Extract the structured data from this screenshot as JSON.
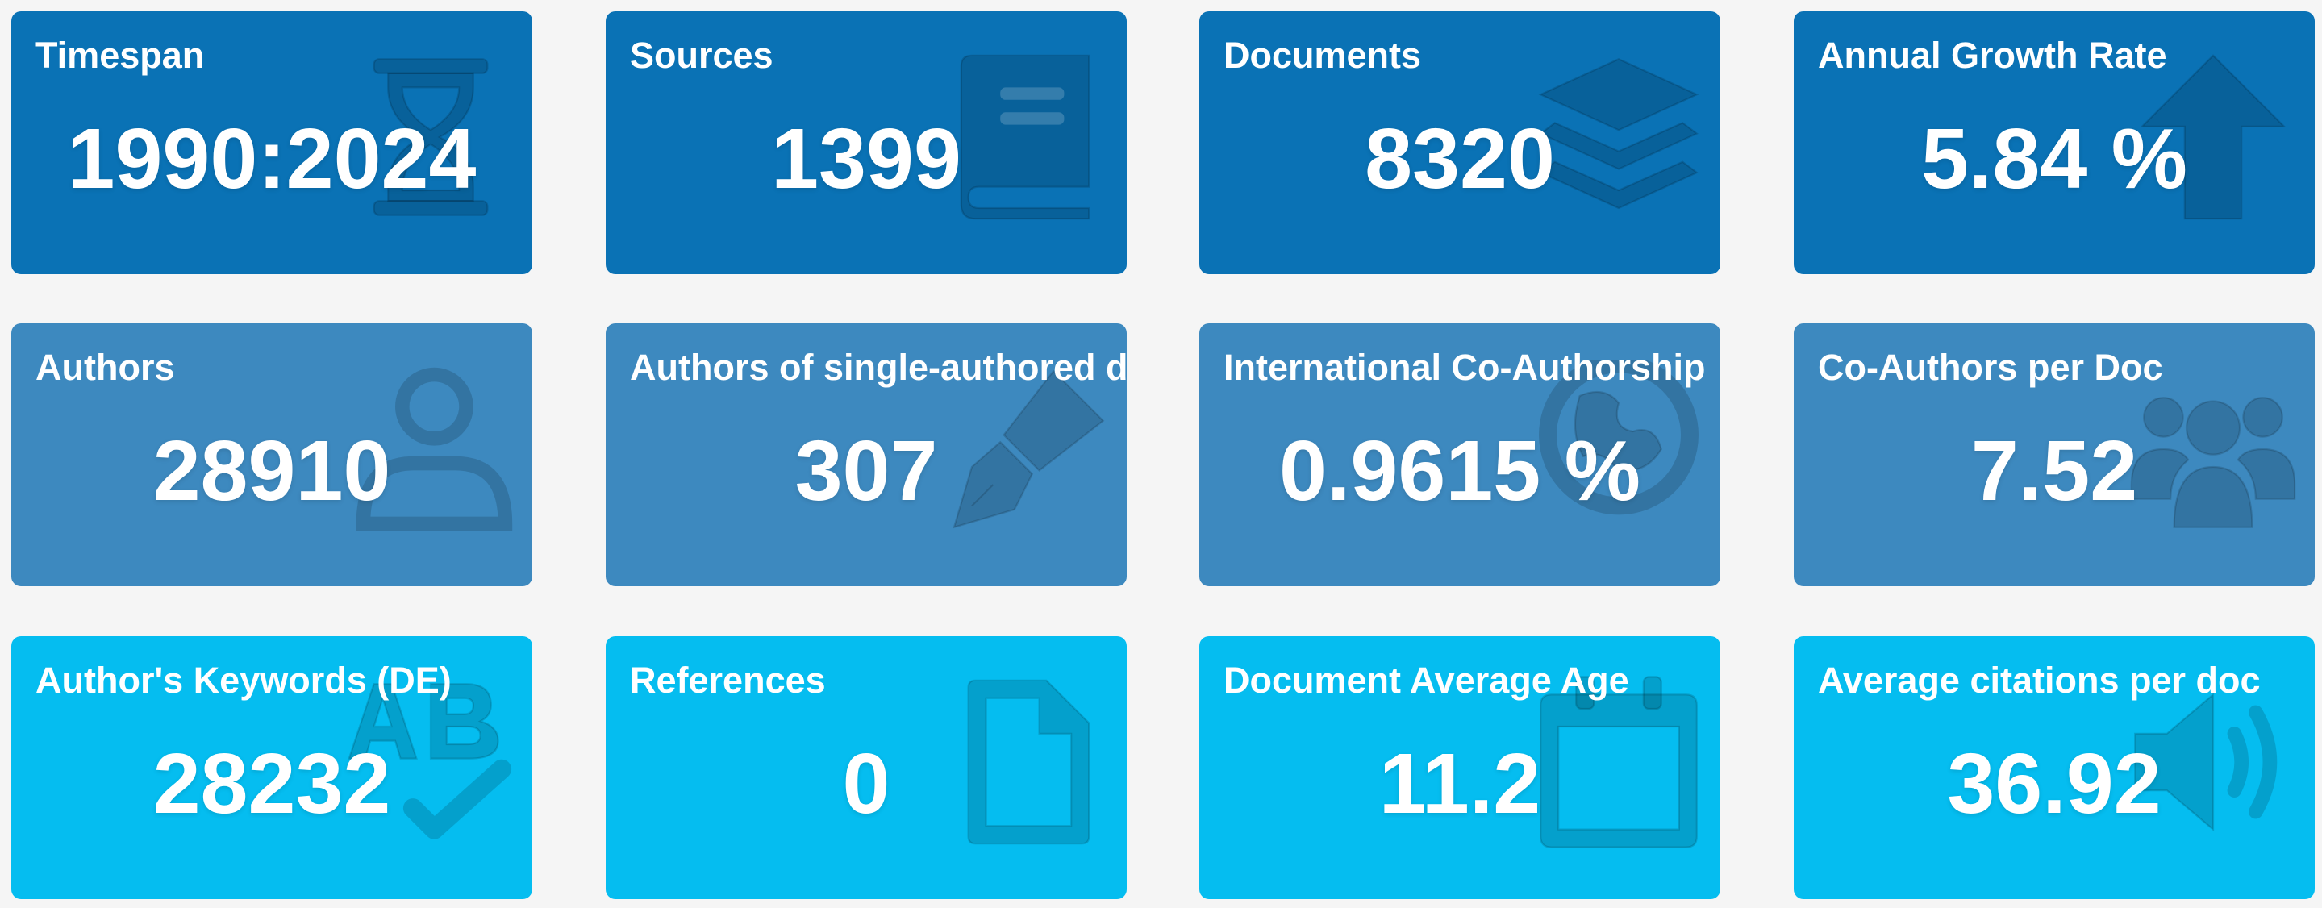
{
  "cards": [
    {
      "label": "Timespan",
      "value": "1990:2024",
      "icon": "hourglass-icon"
    },
    {
      "label": "Sources",
      "value": "1399",
      "icon": "book-icon"
    },
    {
      "label": "Documents",
      "value": "8320",
      "icon": "layers-icon"
    },
    {
      "label": "Annual Growth Rate",
      "value": "5.84 %",
      "icon": "arrow-up-icon"
    },
    {
      "label": "Authors",
      "value": "28910",
      "icon": "user-icon"
    },
    {
      "label": "Authors of single-authored docs",
      "value": "307",
      "icon": "pen-nib-icon"
    },
    {
      "label": "International Co-Authorship",
      "value": "0.9615 %",
      "icon": "globe-icon"
    },
    {
      "label": "Co-Authors per Doc",
      "value": "7.52",
      "icon": "users-icon"
    },
    {
      "label": "Author's Keywords (DE)",
      "value": "28232",
      "icon": "spell-check-icon"
    },
    {
      "label": "References",
      "value": "0",
      "icon": "file-icon"
    },
    {
      "label": "Document Average Age",
      "value": "11.2",
      "icon": "calendar-icon"
    },
    {
      "label": "Average citations per doc",
      "value": "36.92",
      "icon": "volume-icon"
    }
  ],
  "colors": {
    "row_dark": "#0a72b5",
    "row_mid": "#3d89bf",
    "row_light": "#05bdf0",
    "text": "#ffffff"
  }
}
